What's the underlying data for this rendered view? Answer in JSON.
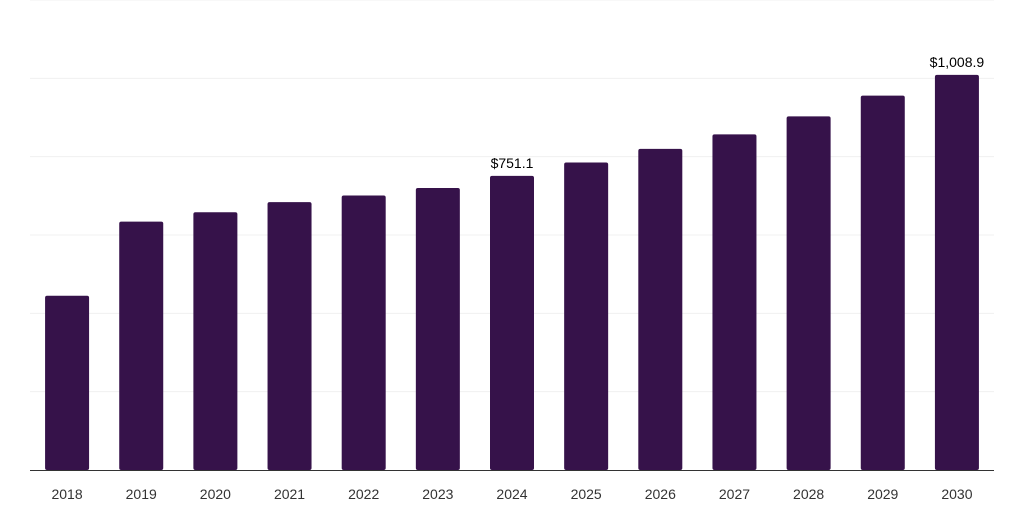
{
  "chart_data": {
    "type": "bar",
    "categories": [
      "2018",
      "2019",
      "2020",
      "2021",
      "2022",
      "2023",
      "2024",
      "2025",
      "2026",
      "2027",
      "2028",
      "2029",
      "2030"
    ],
    "values": [
      445,
      634,
      658,
      684,
      701,
      720,
      751.1,
      785,
      820,
      857,
      903,
      956,
      1008.9
    ],
    "data_labels": [
      {
        "index": 6,
        "text": "$751.1"
      },
      {
        "index": 12,
        "text": "$1,008.9"
      }
    ],
    "ylim": [
      0,
      1200
    ],
    "gridlines": [
      200,
      400,
      600,
      800,
      1000,
      1200
    ],
    "grid": true,
    "colors": {
      "bar": "#36124a",
      "grid": "#f0f0f0",
      "axis": "#333333"
    }
  }
}
